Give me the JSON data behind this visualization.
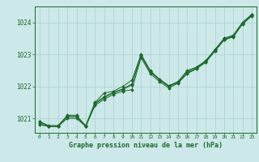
{
  "title": "Graphe pression niveau de la mer (hPa)",
  "background_color": "#cce8e8",
  "grid_color": "#aad0d0",
  "line_color": "#1a6b2a",
  "xlim": [
    -0.5,
    23.5
  ],
  "ylim": [
    1020.55,
    1024.5
  ],
  "xticks": [
    0,
    1,
    2,
    3,
    4,
    5,
    6,
    7,
    8,
    9,
    10,
    11,
    12,
    13,
    14,
    15,
    16,
    17,
    18,
    19,
    20,
    21,
    22,
    23
  ],
  "yticks": [
    1021,
    1022,
    1023,
    1024
  ],
  "series": {
    "s1": [
      1020.8,
      1020.75,
      1020.75,
      1021.1,
      1021.1,
      1020.75,
      1021.5,
      1021.8,
      1021.85,
      1022.0,
      1022.2,
      1023.0,
      1022.5,
      1022.2,
      1022.0,
      1022.15,
      1022.5,
      1022.6,
      1022.8,
      1023.15,
      1023.5,
      1023.6,
      1024.0,
      1024.25
    ],
    "s2": [
      1020.85,
      1020.75,
      1020.75,
      1021.0,
      1021.0,
      1020.75,
      1021.4,
      1021.6,
      1021.75,
      1021.85,
      1021.9,
      1022.9,
      1022.4,
      1022.15,
      1021.95,
      1022.1,
      1022.4,
      1022.55,
      1022.75,
      1023.1,
      1023.45,
      1023.55,
      1023.95,
      1024.2
    ],
    "s3": [
      1020.9,
      1020.75,
      1020.75,
      1021.05,
      1021.05,
      1020.75,
      1021.45,
      1021.65,
      1021.8,
      1021.9,
      1022.05,
      1022.95,
      1022.45,
      1022.2,
      1022.0,
      1022.12,
      1022.42,
      1022.57,
      1022.77,
      1023.12,
      1023.47,
      1023.57,
      1023.97,
      1024.22
    ],
    "s4": [
      1020.9,
      1020.78,
      1020.78,
      1021.08,
      1021.08,
      1020.78,
      1021.48,
      1021.68,
      1021.82,
      1021.92,
      1022.08,
      1022.98,
      1022.48,
      1022.23,
      1022.03,
      1022.15,
      1022.45,
      1022.6,
      1022.8,
      1023.15,
      1023.5,
      1023.6,
      1024.0,
      1024.25
    ]
  }
}
